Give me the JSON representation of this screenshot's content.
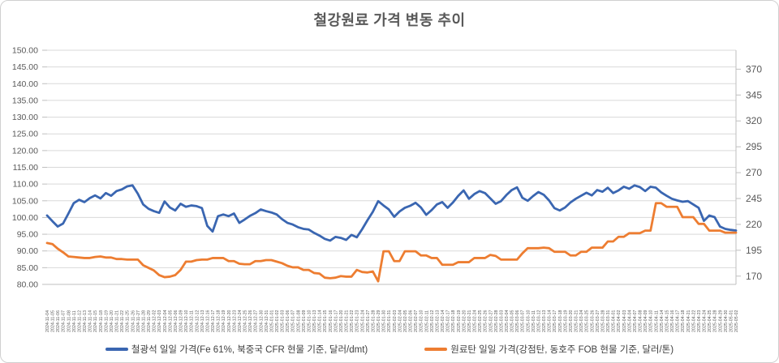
{
  "title": "철강원료 가격 변동 추이",
  "legend": [
    {
      "label": "철광석 일일 가격(Fe 61%, 북중국 CFR 현물 기준, 달러/dmt)",
      "color": "#3A66B1"
    },
    {
      "label": "원료탄 일일 가격(강점탄, 동호주 FOB 현물 기준, 달러/톤)",
      "color": "#ED7D31"
    }
  ],
  "colors": {
    "iron_ore_line": "#3A66B1",
    "coking_coal_line": "#ED7D31",
    "gridline": "#D9D9D9",
    "axis_line": "#BFBFBF",
    "axis_text": "#595959",
    "title_text": "#595959"
  },
  "chart_data": {
    "type": "line",
    "title": "철강원료 가격 변동 추이",
    "grid": true,
    "legend_position": "bottom",
    "axis_left": {
      "min": 80,
      "max": 150,
      "step": 5,
      "labels": [
        "150.00",
        "145.00",
        "140.00",
        "135.00",
        "130.00",
        "125.00",
        "120.00",
        "115.00",
        "110.00",
        "105.00",
        "100.00",
        "95.00",
        "90.00",
        "85.00",
        "80.00"
      ]
    },
    "axis_right": {
      "tick_labels": [
        "370",
        "345",
        "320",
        "295",
        "270",
        "245",
        "220",
        "195",
        "170"
      ],
      "tick_values": [
        370,
        345,
        320,
        295,
        270,
        245,
        220,
        195,
        170
      ],
      "display_min": 162.0,
      "display_max": 388.3
    },
    "x": [
      "2024-11-04",
      "2024-11-05",
      "2024-11-06",
      "2024-11-07",
      "2024-11-08",
      "2024-11-11",
      "2024-11-12",
      "2024-11-13",
      "2024-11-14",
      "2024-11-15",
      "2024-11-18",
      "2024-11-19",
      "2024-11-20",
      "2024-11-21",
      "2024-11-22",
      "2024-11-25",
      "2024-11-26",
      "2024-11-27",
      "2024-11-28",
      "2024-11-29",
      "2024-12-02",
      "2024-12-03",
      "2024-12-04",
      "2024-12-05",
      "2024-12-06",
      "2024-12-09",
      "2024-12-10",
      "2024-12-11",
      "2024-12-12",
      "2024-12-13",
      "2024-12-16",
      "2024-12-17",
      "2024-12-18",
      "2024-12-19",
      "2024-12-20",
      "2024-12-23",
      "2024-12-24",
      "2024-12-25",
      "2024-12-26",
      "2024-12-27",
      "2024-12-30",
      "2024-12-31",
      "2025-01-01",
      "2025-01-02",
      "2025-01-03",
      "2025-01-06",
      "2025-01-07",
      "2025-01-08",
      "2025-01-09",
      "2025-01-10",
      "2025-01-13",
      "2025-01-14",
      "2025-01-15",
      "2025-01-16",
      "2025-01-17",
      "2025-01-20",
      "2025-01-21",
      "2025-01-22",
      "2025-01-23",
      "2025-01-24",
      "2025-01-27",
      "2025-01-28",
      "2025-01-29",
      "2025-01-30",
      "2025-01-31",
      "2025-02-03",
      "2025-02-04",
      "2025-02-05",
      "2025-02-06",
      "2025-02-07",
      "2025-02-10",
      "2025-02-11",
      "2025-02-12",
      "2025-02-13",
      "2025-02-14",
      "2025-02-17",
      "2025-02-18",
      "2025-02-19",
      "2025-02-20",
      "2025-02-21",
      "2025-02-24",
      "2025-02-25",
      "2025-02-26",
      "2025-02-27",
      "2025-02-28",
      "2025-03-03",
      "2025-03-04",
      "2025-03-05",
      "2025-03-06",
      "2025-03-07",
      "2025-03-10",
      "2025-03-11",
      "2025-03-12",
      "2025-03-13",
      "2025-03-14",
      "2025-03-17",
      "2025-03-18",
      "2025-03-19",
      "2025-03-20",
      "2025-03-21",
      "2025-03-24",
      "2025-03-25",
      "2025-03-26",
      "2025-03-27",
      "2025-03-28",
      "2025-03-31",
      "2025-04-01",
      "2025-04-02",
      "2025-04-03",
      "2025-04-04",
      "2025-04-07",
      "2025-04-08",
      "2025-04-09",
      "2025-04-10",
      "2025-04-11",
      "2025-04-14",
      "2025-04-15",
      "2025-04-16",
      "2025-04-17",
      "2025-04-18",
      "2025-04-21",
      "2025-04-22",
      "2025-04-23",
      "2025-04-24",
      "2025-04-25",
      "2025-04-28",
      "2025-04-29",
      "2025-04-30",
      "2025-05-01",
      "2025-05-02"
    ],
    "series": [
      {
        "name": "철광석 일일 가격(Fe 61%, 북중국 CFR 현물 기준, 달러/dmt)",
        "axis": "left",
        "color": "#3A66B1",
        "values": [
          100.6,
          98.9,
          97.3,
          98.2,
          101.2,
          104.3,
          105.3,
          104.6,
          105.8,
          106.6,
          105.7,
          107.3,
          106.5,
          107.9,
          108.4,
          109.3,
          109.6,
          107.1,
          103.9,
          102.6,
          101.9,
          101.4,
          104.8,
          103.0,
          102.1,
          104.1,
          103.2,
          103.6,
          103.4,
          102.8,
          97.5,
          95.8,
          100.4,
          100.9,
          100.4,
          101.2,
          98.4,
          99.4,
          100.5,
          101.3,
          102.4,
          101.9,
          101.5,
          100.9,
          99.5,
          98.4,
          97.9,
          97.1,
          96.6,
          96.4,
          95.4,
          94.6,
          93.6,
          93.1,
          94.2,
          93.9,
          93.3,
          94.8,
          94.1,
          96.5,
          99.2,
          101.7,
          104.9,
          103.6,
          102.4,
          100.2,
          101.8,
          102.9,
          103.5,
          104.4,
          103.0,
          100.8,
          102.2,
          103.9,
          104.6,
          102.9,
          104.5,
          106.5,
          108.1,
          105.6,
          107.0,
          107.9,
          107.3,
          105.7,
          104.1,
          104.9,
          106.7,
          108.2,
          109.0,
          105.9,
          105.0,
          106.4,
          107.6,
          106.8,
          105.1,
          102.8,
          102.1,
          103.0,
          104.5,
          105.6,
          106.5,
          107.4,
          106.6,
          108.2,
          107.7,
          108.9,
          107.3,
          108.1,
          109.2,
          108.6,
          109.6,
          109.1,
          107.9,
          109.2,
          108.9,
          107.5,
          106.5,
          105.6,
          105.1,
          104.7,
          104.9,
          103.9,
          102.9,
          99.0,
          100.6,
          100.1,
          97.3,
          96.6,
          96.3,
          96.1
        ]
      },
      {
        "name": "원료탄 일일 가격(강점탄, 동호주 FOB 현물 기준, 달러/톤)",
        "axis": "right",
        "color": "#ED7D31",
        "values": [
          202,
          201,
          196.5,
          193,
          189,
          188.5,
          188,
          187.5,
          187.5,
          188.5,
          189,
          188,
          188,
          186.5,
          186.5,
          186,
          186,
          186,
          180.5,
          178,
          175.5,
          171,
          169,
          169.5,
          171,
          176,
          184,
          184,
          185.5,
          186,
          186,
          187.5,
          187.5,
          187.5,
          184.5,
          184.5,
          182,
          181.5,
          181.5,
          184.5,
          184.5,
          185.5,
          185.5,
          184,
          182.5,
          180,
          178.5,
          178.5,
          176,
          176,
          173,
          172.5,
          168.5,
          168,
          168.5,
          170,
          169.5,
          169.5,
          176,
          174,
          173.5,
          174.5,
          165,
          194,
          194,
          184.5,
          184.5,
          194,
          194,
          194,
          190,
          190,
          187.5,
          187.5,
          181,
          181,
          181,
          183.5,
          183.5,
          183.5,
          187.5,
          187.5,
          187.5,
          190.5,
          189.5,
          186,
          186,
          186,
          186,
          192,
          197,
          197,
          197,
          197.5,
          197,
          193.5,
          193.5,
          193.5,
          190,
          190,
          193.5,
          193.5,
          197.5,
          197.5,
          197.5,
          203.5,
          203.5,
          208,
          208,
          211.5,
          211.5,
          211.5,
          214,
          214,
          240.5,
          240.5,
          237,
          237,
          237,
          227,
          227,
          227,
          220.5,
          220.5,
          214,
          214,
          214,
          212,
          212,
          212
        ]
      }
    ]
  }
}
